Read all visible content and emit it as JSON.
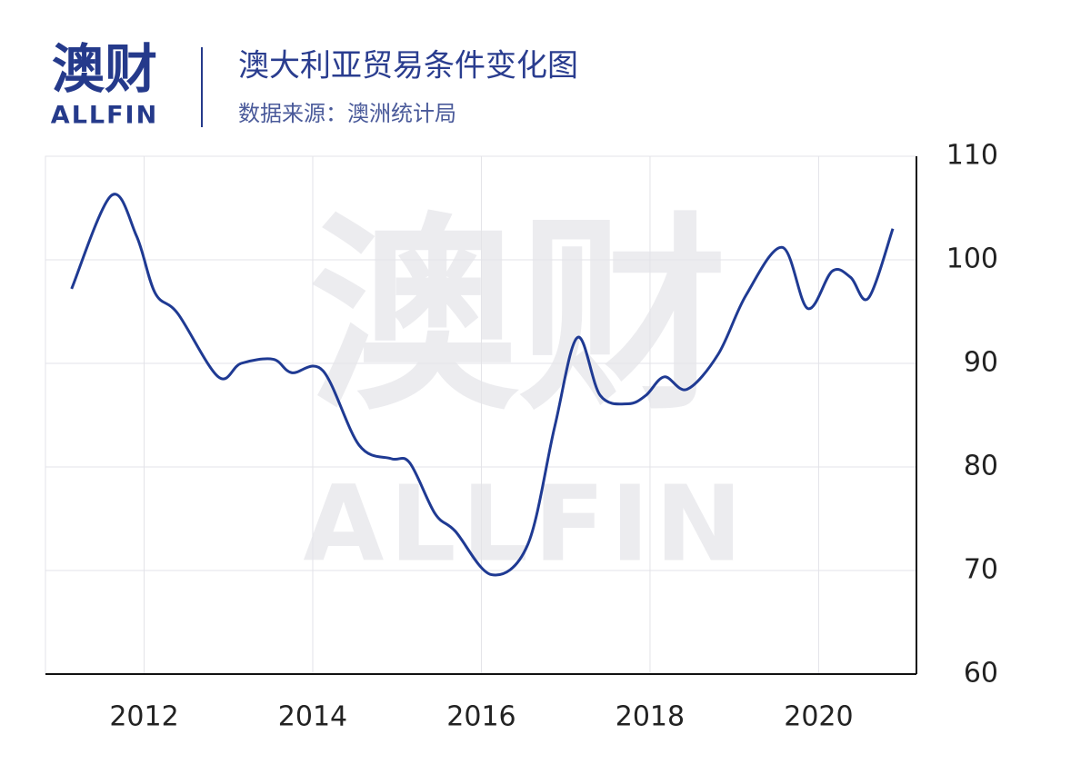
{
  "logo": {
    "name": "澳财",
    "brand": "ALLFIN"
  },
  "chart_data": {
    "type": "line",
    "title": "澳大利亚贸易条件变化图",
    "subtitle": "数据来源：澳洲统计局",
    "x": [
      2011.14,
      2011.61,
      2011.91,
      2012.13,
      2012.4,
      2012.88,
      2013.15,
      2013.53,
      2013.75,
      2014.12,
      2014.55,
      2014.93,
      2015.15,
      2015.45,
      2015.69,
      2016.12,
      2016.55,
      2016.87,
      2017.14,
      2017.41,
      2017.74,
      2017.95,
      2018.17,
      2018.44,
      2018.81,
      2019.14,
      2019.57,
      2019.87,
      2020.16,
      2020.38,
      2020.59,
      2020.88
    ],
    "series": [
      {
        "color": "#1f3a93",
        "values": [
          97.2,
          106.2,
          102.3,
          96.8,
          94.8,
          88.7,
          90.0,
          90.4,
          89.1,
          89.3,
          82.1,
          80.8,
          80.4,
          75.5,
          73.8,
          69.6,
          72.5,
          83.9,
          92.5,
          86.9,
          86.1,
          86.9,
          88.7,
          87.5,
          90.9,
          96.6,
          101.2,
          95.3,
          98.9,
          98.3,
          96.3,
          103.0
        ]
      }
    ],
    "xlim": [
      2010.83,
      2021.16
    ],
    "xticks": [
      2012,
      2014,
      2016,
      2018,
      2020
    ],
    "ylim": [
      60,
      110
    ],
    "yticks": [
      60,
      70,
      80,
      90,
      100,
      110
    ],
    "grid": true
  }
}
